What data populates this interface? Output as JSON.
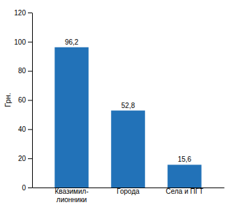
{
  "chart_data": {
    "type": "bar",
    "categories": [
      "Квазимил-\nлионники",
      "Города",
      "Села и ПГТ"
    ],
    "values": [
      96.2,
      52.8,
      15.6
    ],
    "value_labels": [
      "96,2",
      "52,8",
      "15,6"
    ],
    "color": "#2272B8",
    "ylabel": "Грн.",
    "ylim": [
      0,
      120
    ],
    "yticks": [
      0,
      20,
      40,
      60,
      80,
      100,
      120
    ],
    "data_labels": true,
    "grid": false
  }
}
